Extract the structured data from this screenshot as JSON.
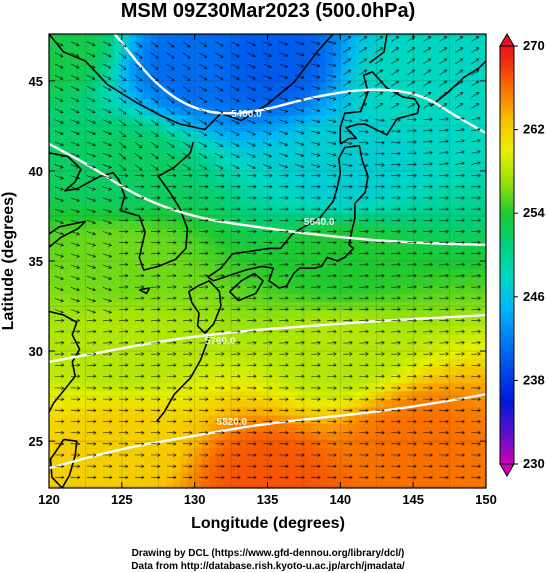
{
  "chart_data": {
    "type": "heatmap",
    "title": "MSM 09Z30Mar2023 (500.0hPa)",
    "xlabel": "Longitude (degrees)",
    "ylabel": "Latitude  (degrees)",
    "xlim": [
      120,
      150
    ],
    "ylim": [
      22.4,
      47.6
    ],
    "x_ticks": [
      "120",
      "125",
      "130",
      "135",
      "140",
      "145",
      "150"
    ],
    "y_ticks": [
      "25",
      "30",
      "35",
      "40",
      "45"
    ],
    "grid": true,
    "colorbar": {
      "min": 230,
      "max": 270,
      "ticks": [
        "230",
        "238",
        "246",
        "254",
        "262",
        "270"
      ],
      "extend": "both",
      "placement": "right"
    },
    "contours": [
      {
        "label": "5400.0"
      },
      {
        "label": "5640.0"
      },
      {
        "label": "5760.0"
      },
      {
        "label": "5820.0"
      }
    ],
    "field_samples": [
      {
        "lon": 120,
        "lat": 47,
        "value": 253
      },
      {
        "lon": 130,
        "lat": 46,
        "value": 241
      },
      {
        "lon": 135,
        "lat": 46,
        "value": 240
      },
      {
        "lon": 145,
        "lat": 45,
        "value": 248
      },
      {
        "lon": 125,
        "lat": 40,
        "value": 252
      },
      {
        "lon": 140,
        "lat": 40,
        "value": 247
      },
      {
        "lon": 125,
        "lat": 35,
        "value": 256
      },
      {
        "lon": 140,
        "lat": 35,
        "value": 254
      },
      {
        "lon": 125,
        "lat": 30,
        "value": 258
      },
      {
        "lon": 140,
        "lat": 30,
        "value": 258
      },
      {
        "lon": 125,
        "lat": 25,
        "value": 262
      },
      {
        "lon": 145,
        "lat": 25,
        "value": 266
      },
      {
        "lon": 135,
        "lat": 23,
        "value": 267
      }
    ]
  },
  "credits": {
    "drawing": "Drawing by DCL (https://www.gfd-dennou.org/library/dcl/)",
    "data": "Data from http://database.rish.kyoto-u.ac.jp/arch/jmadata/"
  }
}
